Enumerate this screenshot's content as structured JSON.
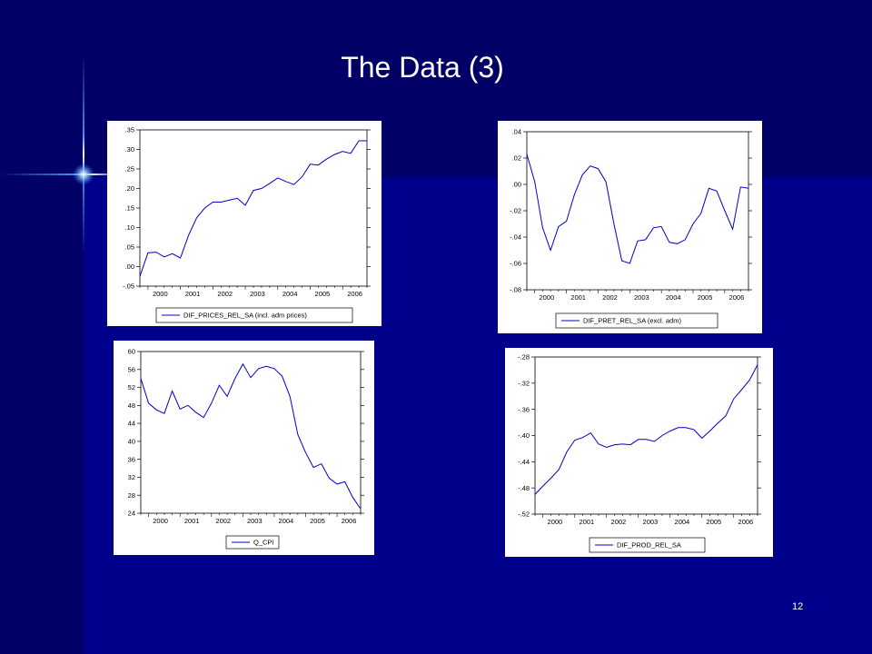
{
  "slide": {
    "title": "The Data (3)",
    "page_number": "12",
    "colors": {
      "background": "#00008a",
      "panel_dark": "#000066",
      "sparkle": "#4f9cff",
      "series_line": "#0000cc"
    }
  },
  "chart_data": [
    {
      "type": "line",
      "x_tick_labels": [
        "2000",
        "2001",
        "2002",
        "2003",
        "2004",
        "2005",
        "2006"
      ],
      "x_range": [
        1999.75,
        2006.75
      ],
      "ylim": [
        -0.05,
        0.35
      ],
      "y_ticks": [
        -0.05,
        0,
        0.05,
        0.1,
        0.15,
        0.2,
        0.25,
        0.3,
        0.35
      ],
      "y_tick_labels": [
        "-.05",
        ".00",
        ".05",
        ".10",
        ".15",
        ".20",
        ".25",
        ".30",
        ".35"
      ],
      "legend": "top-left boxed below plot",
      "grid": false,
      "series": [
        {
          "name": "DIF_PRICES_REL_SA (incl. adm prices)",
          "x": [
            1999.75,
            2000.0,
            2000.25,
            2000.5,
            2000.75,
            2001.0,
            2001.25,
            2001.5,
            2001.75,
            2002.0,
            2002.25,
            2002.5,
            2002.75,
            2003.0,
            2003.25,
            2003.5,
            2003.75,
            2004.0,
            2004.25,
            2004.5,
            2004.75,
            2005.0,
            2005.25,
            2005.5,
            2005.75,
            2006.0,
            2006.25,
            2006.5,
            2006.75
          ],
          "values": [
            -0.025,
            0.035,
            0.037,
            0.025,
            0.033,
            0.022,
            0.08,
            0.125,
            0.15,
            0.165,
            0.165,
            0.17,
            0.175,
            0.157,
            0.195,
            0.2,
            0.213,
            0.227,
            0.218,
            0.21,
            0.23,
            0.262,
            0.26,
            0.275,
            0.287,
            0.295,
            0.29,
            0.322,
            0.322
          ]
        }
      ]
    },
    {
      "type": "line",
      "x_tick_labels": [
        "2000",
        "2001",
        "2002",
        "2003",
        "2004",
        "2005",
        "2006"
      ],
      "x_range": [
        1999.75,
        2006.75
      ],
      "ylim": [
        -0.08,
        0.04
      ],
      "y_ticks": [
        -0.08,
        -0.06,
        -0.04,
        -0.02,
        0,
        0.02,
        0.04
      ],
      "y_tick_labels": [
        "-.08",
        "-.06",
        "-.04",
        "-.02",
        ".00",
        ".02",
        ".04"
      ],
      "legend": "top-left boxed below plot",
      "grid": false,
      "series": [
        {
          "name": "DIF_PRET_REL_SA (excl. adm)",
          "x": [
            1999.75,
            2000.0,
            2000.25,
            2000.5,
            2000.75,
            2001.0,
            2001.25,
            2001.5,
            2001.75,
            2002.0,
            2002.25,
            2002.5,
            2002.75,
            2003.0,
            2003.25,
            2003.5,
            2003.75,
            2004.0,
            2004.25,
            2004.5,
            2004.75,
            2005.0,
            2005.25,
            2005.5,
            2005.75,
            2006.0,
            2006.25,
            2006.5,
            2006.75
          ],
          "values": [
            0.023,
            0.002,
            -0.033,
            -0.05,
            -0.032,
            -0.028,
            -0.008,
            0.007,
            0.014,
            0.012,
            0.002,
            -0.03,
            -0.058,
            -0.06,
            -0.043,
            -0.042,
            -0.033,
            -0.032,
            -0.044,
            -0.045,
            -0.042,
            -0.03,
            -0.022,
            -0.003,
            -0.005,
            -0.02,
            -0.034,
            -0.002,
            -0.003
          ]
        }
      ]
    },
    {
      "type": "line",
      "x_tick_labels": [
        "2000",
        "2001",
        "2002",
        "2003",
        "2004",
        "2005",
        "2006"
      ],
      "x_range": [
        1999.75,
        2006.75
      ],
      "ylim": [
        24,
        60
      ],
      "y_ticks": [
        24,
        28,
        32,
        36,
        40,
        44,
        48,
        52,
        56,
        60
      ],
      "y_tick_labels": [
        "24",
        "28",
        "32",
        "36",
        "40",
        "44",
        "48",
        "52",
        "56",
        "60"
      ],
      "legend": "centered boxed below plot",
      "grid": false,
      "series": [
        {
          "name": "Q_CPI",
          "x": [
            1999.75,
            2000.0,
            2000.25,
            2000.5,
            2000.75,
            2001.0,
            2001.25,
            2001.5,
            2001.75,
            2002.0,
            2002.25,
            2002.5,
            2002.75,
            2003.0,
            2003.25,
            2003.5,
            2003.75,
            2004.0,
            2004.25,
            2004.5,
            2004.75,
            2005.0,
            2005.25,
            2005.5,
            2005.75,
            2006.0,
            2006.25,
            2006.5,
            2006.75
          ],
          "values": [
            54.0,
            48.5,
            47.0,
            46.2,
            51.2,
            47.2,
            48.0,
            46.5,
            45.3,
            48.5,
            52.5,
            50.0,
            54.0,
            57.2,
            54.2,
            56.2,
            56.7,
            56.2,
            54.5,
            50.0,
            41.5,
            37.5,
            34.2,
            35.0,
            31.8,
            30.5,
            31.0,
            27.5,
            25.0
          ]
        }
      ]
    },
    {
      "type": "line",
      "x_tick_labels": [
        "2000",
        "2001",
        "2002",
        "2003",
        "2004",
        "2005",
        "2006"
      ],
      "x_range": [
        1999.75,
        2006.75
      ],
      "ylim": [
        -0.52,
        -0.28
      ],
      "y_ticks": [
        -0.52,
        -0.48,
        -0.44,
        -0.4,
        -0.36,
        -0.32,
        -0.28
      ],
      "y_tick_labels": [
        "-.52",
        "-.48",
        "-.44",
        "-.40",
        "-.36",
        "-.32",
        "-.28"
      ],
      "legend": "centered boxed below plot",
      "grid": false,
      "series": [
        {
          "name": "DIF_PROD_REL_SA",
          "x": [
            1999.75,
            2000.0,
            2000.25,
            2000.5,
            2000.75,
            2001.0,
            2001.25,
            2001.5,
            2001.75,
            2002.0,
            2002.25,
            2002.5,
            2002.75,
            2003.0,
            2003.25,
            2003.5,
            2003.75,
            2004.0,
            2004.25,
            2004.5,
            2004.75,
            2005.0,
            2005.25,
            2005.5,
            2005.75,
            2006.0,
            2006.25,
            2006.5,
            2006.75
          ],
          "values": [
            -0.49,
            -0.477,
            -0.465,
            -0.452,
            -0.425,
            -0.407,
            -0.403,
            -0.396,
            -0.413,
            -0.418,
            -0.414,
            -0.413,
            -0.414,
            -0.406,
            -0.406,
            -0.409,
            -0.4,
            -0.393,
            -0.388,
            -0.388,
            -0.391,
            -0.404,
            -0.393,
            -0.381,
            -0.37,
            -0.344,
            -0.33,
            -0.315,
            -0.292
          ]
        }
      ]
    }
  ]
}
